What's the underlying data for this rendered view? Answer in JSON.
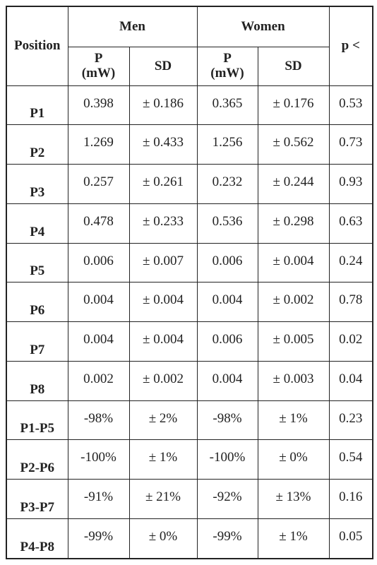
{
  "table": {
    "header": {
      "position": "Position",
      "groups": [
        "Men",
        "Women"
      ],
      "p": "p <",
      "sub": [
        "P (mW)",
        "SD",
        "P (mW)",
        "SD"
      ]
    },
    "rows": [
      [
        "P1",
        "0.398",
        "± 0.186",
        "0.365",
        "± 0.176",
        "0.53"
      ],
      [
        "P2",
        "1.269",
        "± 0.433",
        "1.256",
        "± 0.562",
        "0.73"
      ],
      [
        "P3",
        "0.257",
        "± 0.261",
        "0.232",
        "± 0.244",
        "0.93"
      ],
      [
        "P4",
        "0.478",
        "± 0.233",
        "0.536",
        "± 0.298",
        "0.63"
      ],
      [
        "P5",
        "0.006",
        "± 0.007",
        "0.006",
        "± 0.004",
        "0.24"
      ],
      [
        "P6",
        "0.004",
        "± 0.004",
        "0.004",
        "± 0.002",
        "0.78"
      ],
      [
        "P7",
        "0.004",
        "± 0.004",
        "0.006",
        "± 0.005",
        "0.02"
      ],
      [
        "P8",
        "0.002",
        "± 0.002",
        "0.004",
        "± 0.003",
        "0.04"
      ],
      [
        "P1-P5",
        "-98%",
        "± 2%",
        "-98%",
        "± 1%",
        "0.23"
      ],
      [
        "P2-P6",
        "-100%",
        "± 1%",
        "-100%",
        "± 0%",
        "0.54"
      ],
      [
        "P3-P7",
        "-91%",
        "± 21%",
        "-92%",
        "± 13%",
        "0.16"
      ],
      [
        "P4-P8",
        "-99%",
        "± 0%",
        "-99%",
        "± 1%",
        "0.05"
      ]
    ]
  }
}
